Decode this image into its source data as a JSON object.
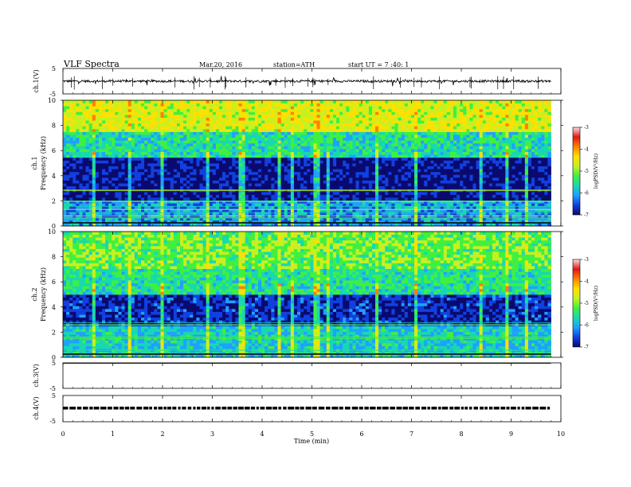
{
  "header": {
    "title": "VLF Spectra",
    "date": "Mar.20, 2016",
    "station": "station=ATH",
    "start": "start  UT =   7 :40: 1"
  },
  "colorbar_ylabel": "logPSD(V²/Hz)",
  "colormap_hex": [
    "#0a0a6e",
    "#1040e0",
    "#20a0ff",
    "#18d8b0",
    "#40f040",
    "#c8f020",
    "#ffe000",
    "#ff8000",
    "#e01818",
    "#ffd8e0"
  ],
  "chart_data": [
    {
      "id": "ch1-voltage",
      "type": "line",
      "ylabel": "ch.1(V)",
      "ylim": [
        -5,
        5
      ],
      "yticks": [
        "5",
        "-5"
      ],
      "baseline": 0,
      "description_values": {
        "x_range_min": [
          0,
          9.8
        ],
        "typical_level_V": 0
      }
    },
    {
      "id": "ch1-spectrogram",
      "type": "heatmap",
      "ylabel": "ch.1",
      "ysublabel": "Frequency (kHz)",
      "ylim": [
        0,
        10
      ],
      "yticks": [
        "0",
        "2",
        "4",
        "6",
        "8",
        "10"
      ],
      "x_range_min": [
        0,
        9.8
      ],
      "colorbar": {
        "range": [
          -7,
          -3
        ],
        "ticks": [
          "-3",
          "-4",
          "-5",
          "-6",
          "-7"
        ]
      },
      "bands": [
        {
          "from_kHz": 0,
          "to_kHz": 2,
          "logPSD": -5.9
        },
        {
          "from_kHz": 2,
          "to_kHz": 5.5,
          "logPSD": -6.7
        },
        {
          "from_kHz": 5.5,
          "to_kHz": 7.5,
          "logPSD": -5.4
        },
        {
          "from_kHz": 7.5,
          "to_kHz": 10,
          "logPSD": -4.4
        }
      ],
      "spike_times_min": [
        0.6,
        1.35,
        2.0,
        2.9,
        3.6,
        4.35,
        4.6,
        5.1,
        5.35,
        6.3,
        7.1,
        8.4,
        8.9,
        9.3
      ]
    },
    {
      "id": "ch2-spectrogram",
      "type": "heatmap",
      "ylabel": "ch.2",
      "ysublabel": "Frequency (kHz)",
      "ylim": [
        0,
        10
      ],
      "yticks": [
        "0",
        "2",
        "4",
        "6",
        "8",
        "10"
      ],
      "x_range_min": [
        0,
        9.8
      ],
      "colorbar": {
        "range": [
          -7,
          -3
        ],
        "ticks": [
          "-3",
          "-4",
          "-5",
          "-6",
          "-7"
        ]
      },
      "bands": [
        {
          "from_kHz": 0,
          "to_kHz": 2.5,
          "logPSD": -5.6
        },
        {
          "from_kHz": 2.5,
          "to_kHz": 5,
          "logPSD": -6.5
        },
        {
          "from_kHz": 5,
          "to_kHz": 7,
          "logPSD": -5.3
        },
        {
          "from_kHz": 7,
          "to_kHz": 10,
          "logPSD": -4.9
        }
      ],
      "spike_times_min": [
        0.6,
        1.35,
        2.0,
        2.9,
        3.6,
        4.35,
        4.6,
        5.1,
        5.35,
        6.3,
        7.1,
        8.4,
        8.9,
        9.3
      ]
    },
    {
      "id": "ch3-voltage",
      "type": "line",
      "ylabel": "ch.3(V)",
      "ylim": [
        -5,
        5
      ],
      "yticks": [
        "5",
        "-5"
      ],
      "baseline": 4.8
    },
    {
      "id": "ch4-voltage",
      "type": "line",
      "ylabel": "ch.4(V)",
      "ylim": [
        -5,
        5
      ],
      "yticks": [
        "5",
        "-5"
      ],
      "baseline": 0.2
    }
  ],
  "x_axis": {
    "xlabel": "Time (min)",
    "xlim": [
      0,
      10
    ],
    "ticks": [
      "0",
      "1",
      "2",
      "3",
      "4",
      "5",
      "6",
      "7",
      "8",
      "9",
      "10"
    ]
  }
}
